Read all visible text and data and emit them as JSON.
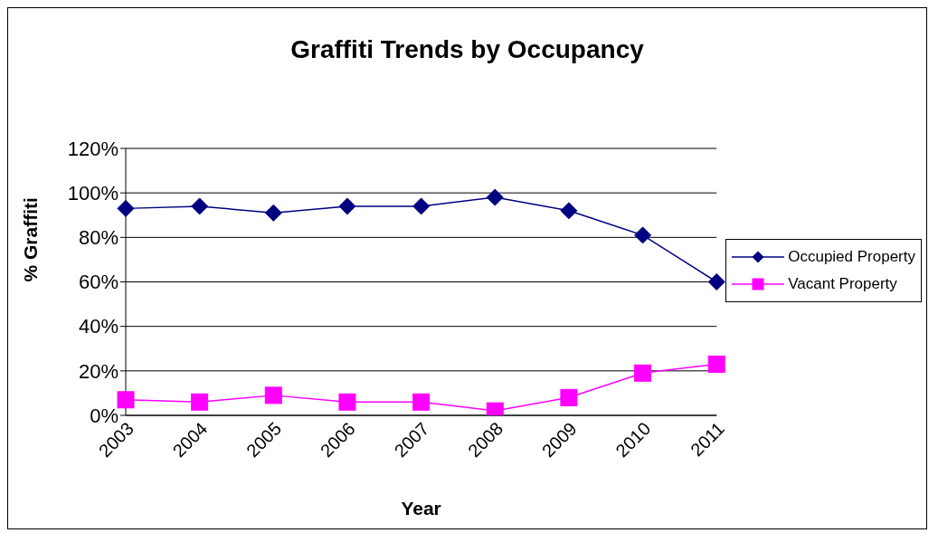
{
  "chart_data": {
    "type": "line",
    "title": "Graffiti Trends by Occupancy",
    "xlabel": "Year",
    "ylabel": "% Graffiti",
    "categories": [
      "2003",
      "2004",
      "2005",
      "2006",
      "2007",
      "2008",
      "2009",
      "2010",
      "2011"
    ],
    "series": [
      {
        "name": "Occupied Property",
        "color": "#000080",
        "marker": "diamond",
        "values": [
          93,
          94,
          91,
          94,
          94,
          98,
          92,
          81,
          60
        ]
      },
      {
        "name": "Vacant Property",
        "color": "#ff00ff",
        "marker": "square",
        "values": [
          7,
          6,
          9,
          6,
          6,
          2,
          8,
          19,
          23
        ]
      }
    ],
    "ylim": [
      0,
      120
    ],
    "yticks": [
      {
        "value": 0,
        "label": "0%"
      },
      {
        "value": 20,
        "label": "20%"
      },
      {
        "value": 40,
        "label": "40%"
      },
      {
        "value": 60,
        "label": "60%"
      },
      {
        "value": 80,
        "label": "80%"
      },
      {
        "value": 100,
        "label": "100%"
      },
      {
        "value": 120,
        "label": "120%"
      }
    ],
    "grid": "y",
    "legend": "right",
    "line_style": "solid"
  }
}
